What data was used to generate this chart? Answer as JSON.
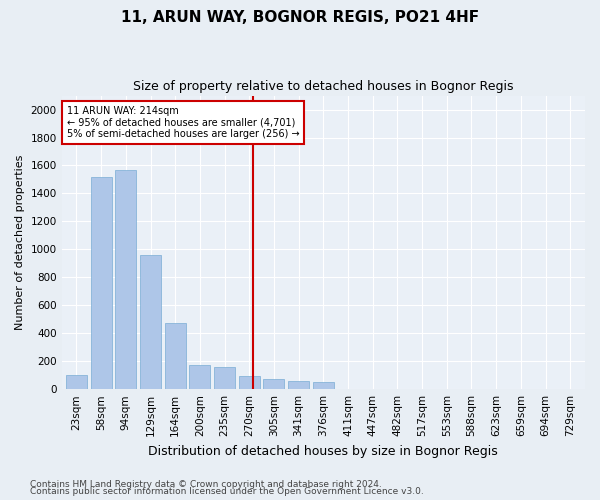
{
  "title": "11, ARUN WAY, BOGNOR REGIS, PO21 4HF",
  "subtitle": "Size of property relative to detached houses in Bognor Regis",
  "xlabel": "Distribution of detached houses by size in Bognor Regis",
  "ylabel": "Number of detached properties",
  "categories": [
    "23sqm",
    "58sqm",
    "94sqm",
    "129sqm",
    "164sqm",
    "200sqm",
    "235sqm",
    "270sqm",
    "305sqm",
    "341sqm",
    "376sqm",
    "411sqm",
    "447sqm",
    "482sqm",
    "517sqm",
    "553sqm",
    "588sqm",
    "623sqm",
    "659sqm",
    "694sqm",
    "729sqm"
  ],
  "values": [
    100,
    1520,
    1570,
    960,
    470,
    175,
    160,
    95,
    70,
    55,
    50,
    0,
    0,
    0,
    0,
    0,
    0,
    0,
    0,
    0,
    0
  ],
  "bar_color": "#aec6e8",
  "bar_edge_color": "#7aadd4",
  "vline_x": 7.15,
  "vline_color": "#cc0000",
  "annotation_text": "11 ARUN WAY: 214sqm\n← 95% of detached houses are smaller (4,701)\n5% of semi-detached houses are larger (256) →",
  "annotation_box_color": "#ffffff",
  "annotation_box_edge": "#cc0000",
  "ylim": [
    0,
    2100
  ],
  "yticks": [
    0,
    200,
    400,
    600,
    800,
    1000,
    1200,
    1400,
    1600,
    1800,
    2000
  ],
  "bg_color": "#e8eef4",
  "plot_bg_color": "#eaf0f7",
  "grid_color": "#ffffff",
  "footer_line1": "Contains HM Land Registry data © Crown copyright and database right 2024.",
  "footer_line2": "Contains public sector information licensed under the Open Government Licence v3.0.",
  "title_fontsize": 11,
  "subtitle_fontsize": 9,
  "xlabel_fontsize": 9,
  "ylabel_fontsize": 8,
  "tick_fontsize": 7.5,
  "footer_fontsize": 6.5
}
